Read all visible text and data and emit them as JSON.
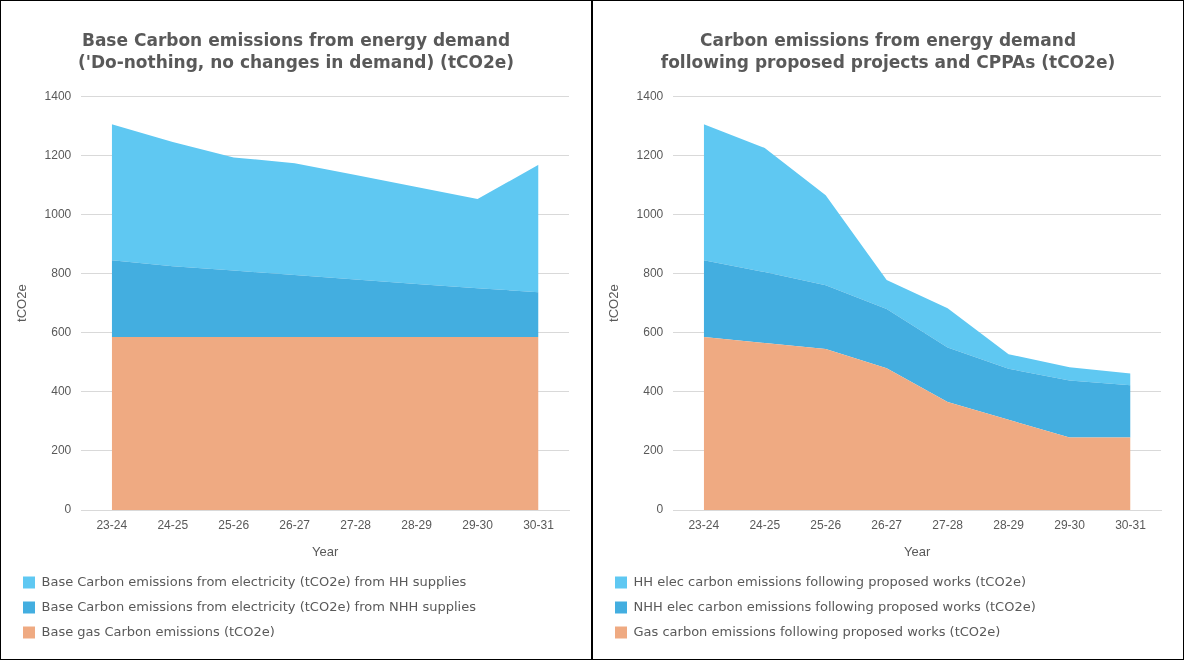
{
  "chart_data": [
    {
      "type": "area",
      "title": "Base Carbon emissions from energy demand ('Do-nothing, no changes in demand) (tCO2e)",
      "xlabel": "Year",
      "ylabel": "tCO2e",
      "categories": [
        "23-24",
        "24-25",
        "25-26",
        "26-27",
        "27-28",
        "28-29",
        "29-30",
        "30-31"
      ],
      "stacked": true,
      "ylim": [
        0,
        1400
      ],
      "yticks": [
        0,
        200,
        400,
        600,
        800,
        1000,
        1200,
        1400
      ],
      "grid": "y",
      "legend": "bottom",
      "series": [
        {
          "name": "Base gas Carbon emissions (tCO2e)",
          "color": "#efaa82",
          "values": [
            585,
            585,
            585,
            585,
            585,
            585,
            585,
            585
          ]
        },
        {
          "name": "Base Carbon emissions from electricity (tCO2e) from NHH supplies",
          "color": "#43aee0",
          "values": [
            260,
            240,
            225,
            210,
            195,
            180,
            165,
            152
          ]
        },
        {
          "name": "Base Carbon emissions from electricity (tCO2e) from HH supplies",
          "color": "#5fc8f2",
          "values": [
            460,
            420,
            383,
            378,
            353,
            328,
            302,
            431
          ]
        }
      ]
    },
    {
      "type": "area",
      "title": "Carbon emissions from energy demand following proposed projects and CPPAs (tCO2e)",
      "xlabel": "Year",
      "ylabel": "tCO2e",
      "categories": [
        "23-24",
        "24-25",
        "25-26",
        "26-27",
        "27-28",
        "28-29",
        "29-30",
        "30-31"
      ],
      "stacked": true,
      "ylim": [
        0,
        1400
      ],
      "yticks": [
        0,
        200,
        400,
        600,
        800,
        1000,
        1200,
        1400
      ],
      "grid": "y",
      "legend": "bottom",
      "series": [
        {
          "name": "Gas carbon emissions following proposed works (tCO2e)",
          "color": "#efaa82",
          "values": [
            585,
            565,
            545,
            480,
            365,
            305,
            245,
            245
          ]
        },
        {
          "name": "NHH elec carbon emissions following proposed works (tCO2e)",
          "color": "#43aee0",
          "values": [
            260,
            240,
            215,
            200,
            185,
            173,
            193,
            177
          ]
        },
        {
          "name": "HH elec carbon emissions following proposed works (tCO2e)",
          "color": "#5fc8f2",
          "values": [
            460,
            420,
            305,
            98,
            133,
            49,
            45,
            40
          ]
        }
      ]
    }
  ]
}
